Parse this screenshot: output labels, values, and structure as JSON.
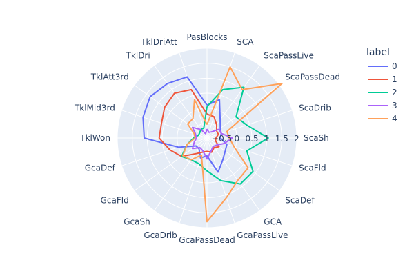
{
  "chart_data": {
    "type": "radar",
    "theta": [
      "PasBlocks",
      "SCA",
      "ScaPassLive",
      "ScaPassDead",
      "ScaDrib",
      "ScaSh",
      "ScaFld",
      "ScaDef",
      "GCA",
      "GcaPassLive",
      "GcaPassDead",
      "GcaDrib",
      "GcaSh",
      "GcaFld",
      "GcaDef",
      "TklWon",
      "TklMid3rd",
      "TklAtt3rd",
      "TklDri",
      "TklDriAtt"
    ],
    "radial_range": [
      -1,
      2
    ],
    "radial_ticks": [
      "−0.5",
      "0",
      "0.5",
      "1",
      "1.5",
      "2"
    ],
    "legend": {
      "title": "label",
      "position": "top-right"
    },
    "series": [
      {
        "name": "0",
        "color": "#636efa",
        "values": [
          0.1,
          0.35,
          -0.25,
          -0.45,
          -0.5,
          -0.55,
          -0.3,
          -0.25,
          -0.1,
          0.2,
          -0.4,
          -0.3,
          -0.55,
          -0.55,
          0.0,
          1.1,
          1.25,
          1.35,
          1.25,
          1.15
        ]
      },
      {
        "name": "1",
        "color": "#EF553B",
        "values": [
          -0.2,
          -0.25,
          -0.45,
          -0.6,
          -0.6,
          -0.7,
          -0.7,
          -0.5,
          -0.6,
          -0.5,
          -0.55,
          -0.5,
          -0.35,
          0.05,
          0.3,
          0.6,
          0.6,
          0.75,
          0.85,
          0.7
        ]
      },
      {
        "name": "2",
        "color": "#00cc96",
        "values": [
          0.05,
          0.7,
          1.1,
          0.2,
          0.4,
          1.05,
          0.4,
          0.9,
          0.9,
          0.5,
          0.1,
          -0.1,
          -0.1,
          0.05,
          -0.3,
          -0.55,
          -0.7,
          -0.7,
          -0.65,
          -0.65
        ]
      },
      {
        "name": "3",
        "color": "#ab63fa",
        "values": [
          -0.7,
          -0.8,
          -0.75,
          -0.5,
          -0.5,
          -0.15,
          -0.4,
          -0.6,
          -0.65,
          -0.55,
          -0.3,
          -0.55,
          -0.6,
          -0.4,
          -0.55,
          -0.65,
          -0.6,
          -0.4,
          -0.65,
          -0.85
        ]
      },
      {
        "name": "4",
        "color": "#FFA15A",
        "values": [
          -0.55,
          1.5,
          1.0,
          2.1,
          -0.3,
          -0.25,
          -0.05,
          0.7,
          0.75,
          1.1,
          1.8,
          -0.4,
          -0.1,
          0.0,
          -0.3,
          -0.6,
          -0.55,
          -0.2,
          -0.2,
          0.35
        ]
      }
    ]
  }
}
